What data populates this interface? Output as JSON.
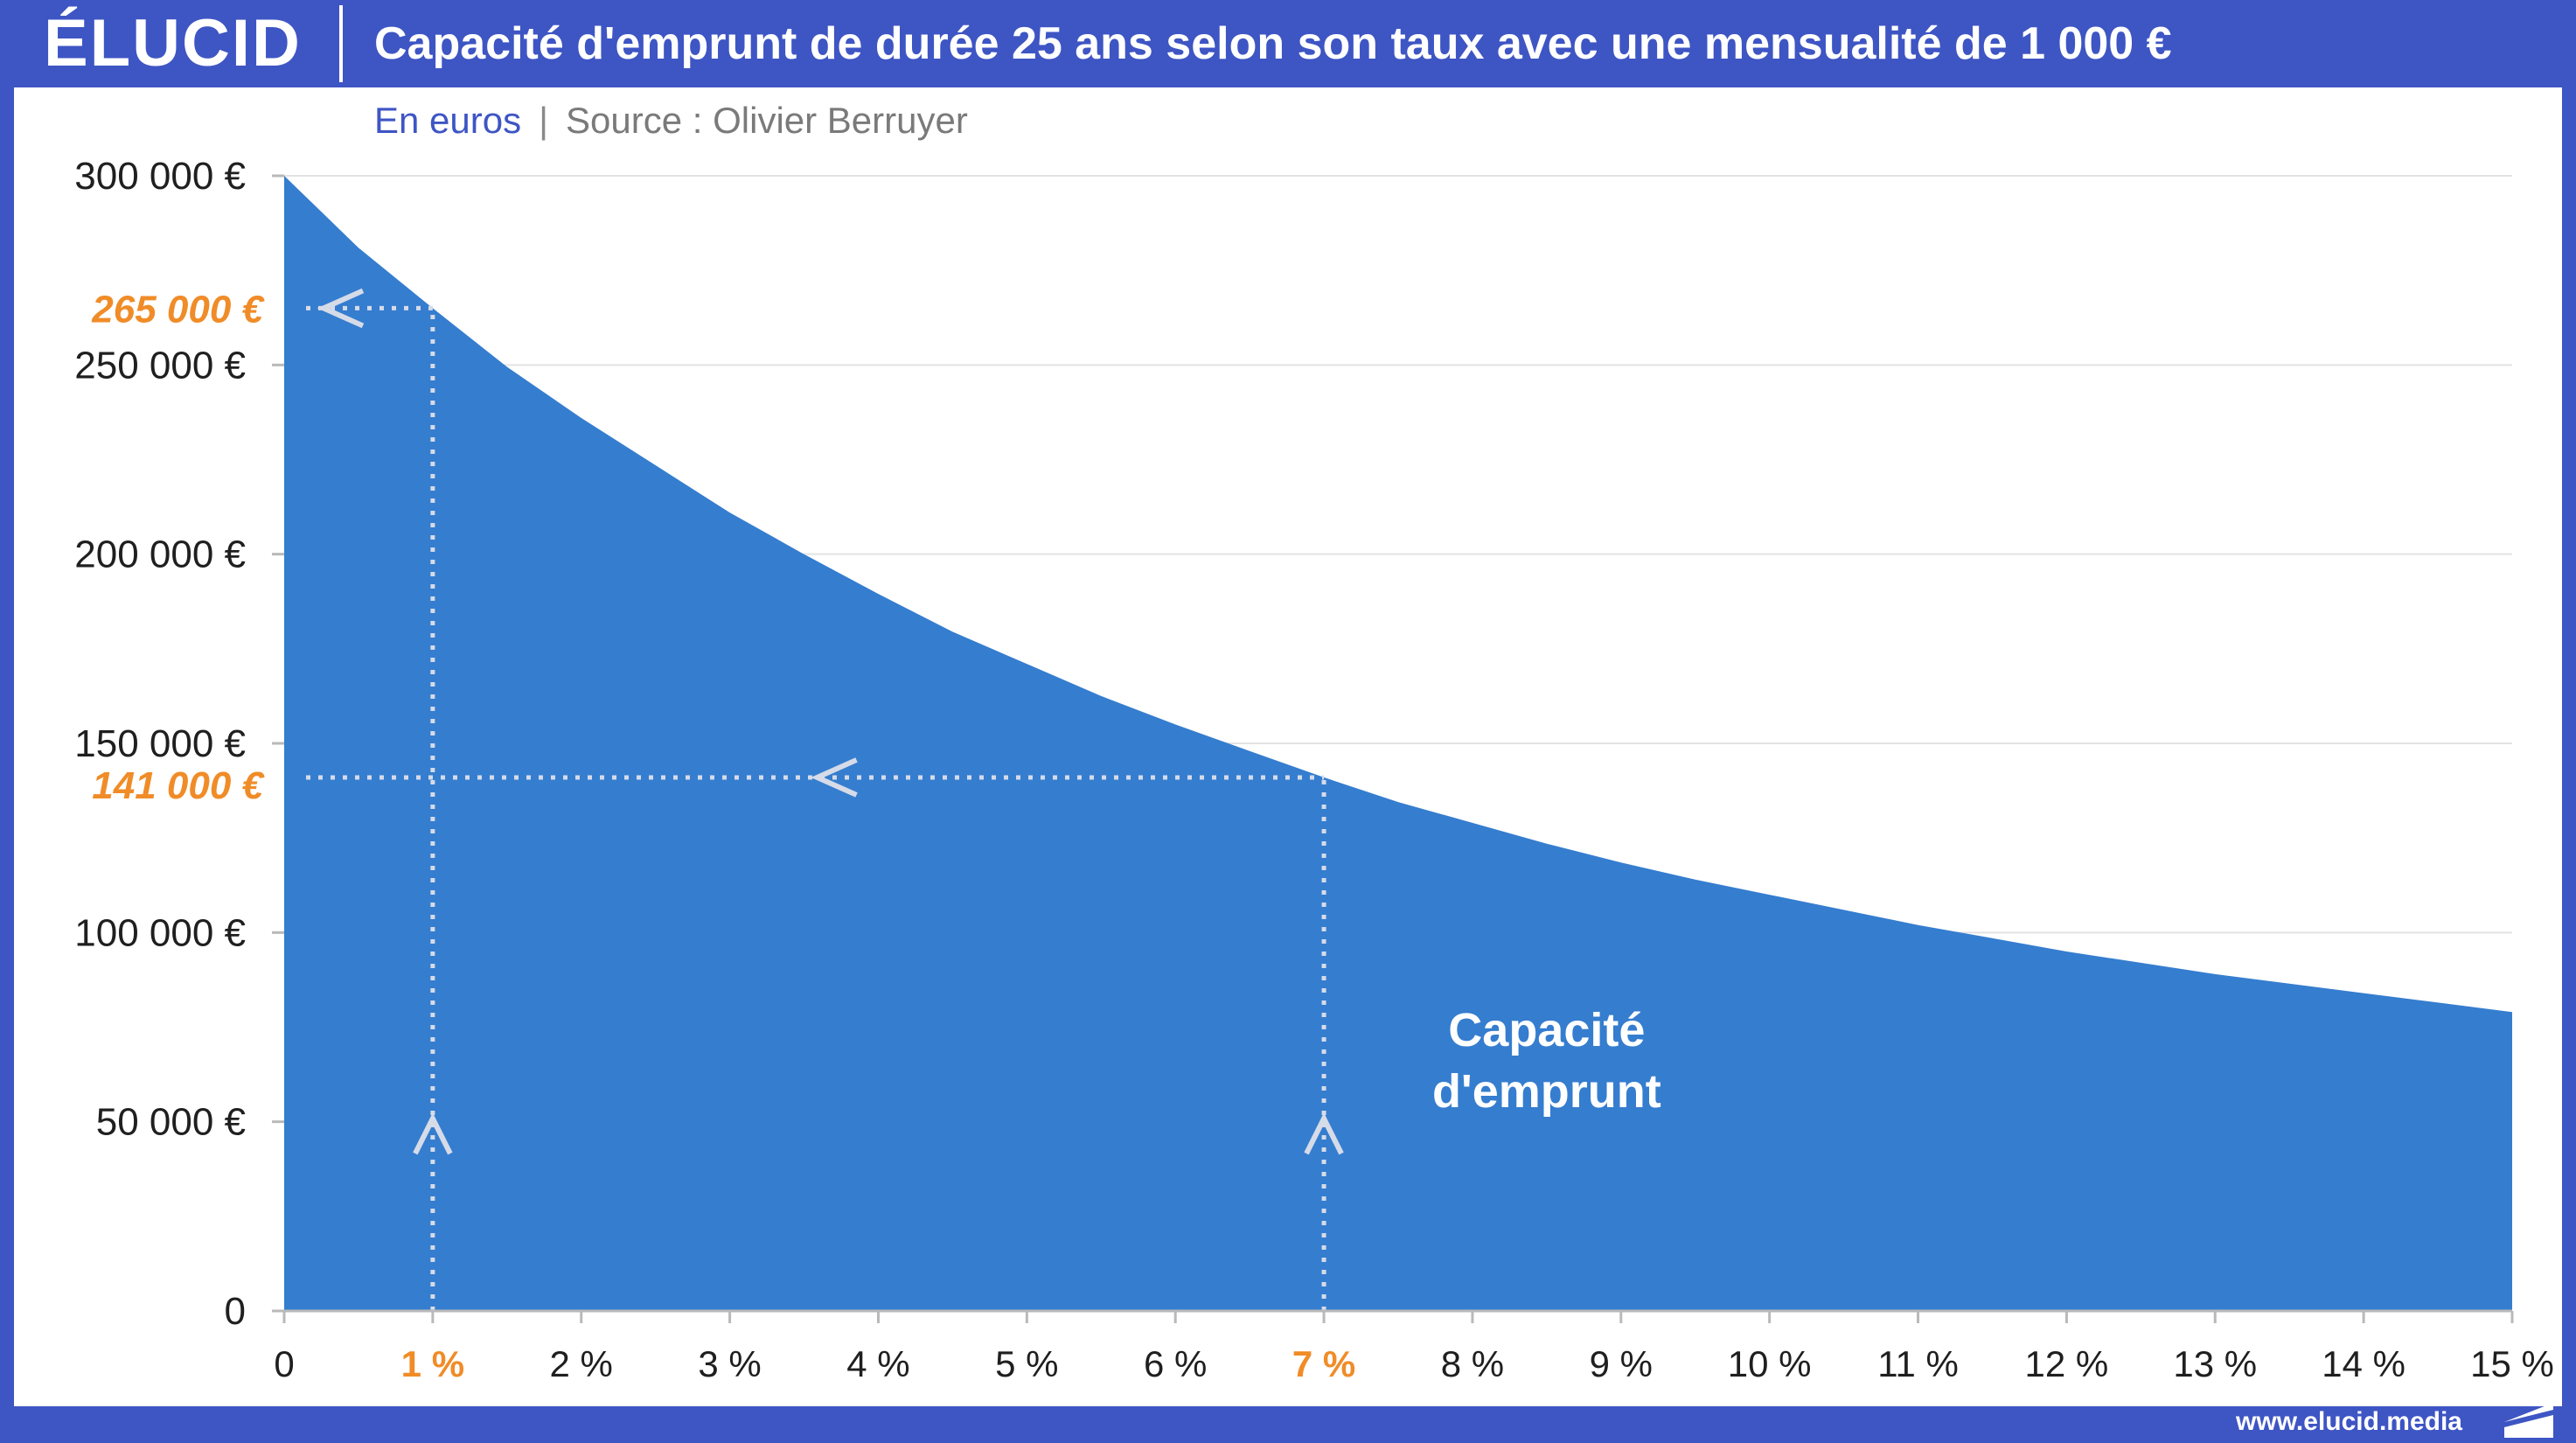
{
  "header": {
    "logo": "ÉLUCID",
    "title": "Capacité d'emprunt de durée 25 ans selon son taux avec une mensualité de 1 000 €"
  },
  "subtitle": {
    "unit": "En euros",
    "separator": "|",
    "source": "Source : Olivier Berruyer"
  },
  "footer": {
    "url": "www.elucid.media"
  },
  "colors": {
    "brand": "#3e55c4",
    "area": "#357dcf",
    "highlight": "#f08c28",
    "guide": "#d6dbe8"
  },
  "chart_data": {
    "type": "area",
    "title": "Capacité d'emprunt de durée 25 ans selon son taux avec une mensualité de 1 000 €",
    "xlabel": "",
    "ylabel": "",
    "x_unit": "%",
    "y_unit": "€",
    "xlim": [
      0,
      15
    ],
    "ylim": [
      0,
      300000
    ],
    "grid": true,
    "y_ticks": [
      {
        "value": 0,
        "label": "0"
      },
      {
        "value": 50000,
        "label": "50 000 €"
      },
      {
        "value": 100000,
        "label": "100 000 €"
      },
      {
        "value": 150000,
        "label": "150 000 €"
      },
      {
        "value": 200000,
        "label": "200 000 €"
      },
      {
        "value": 250000,
        "label": "250 000 €"
      },
      {
        "value": 300000,
        "label": "300 000 €"
      }
    ],
    "x_ticks": [
      {
        "value": 0,
        "label": "0"
      },
      {
        "value": 1,
        "label": "1 %"
      },
      {
        "value": 2,
        "label": "2 %"
      },
      {
        "value": 3,
        "label": "3 %"
      },
      {
        "value": 4,
        "label": "4 %"
      },
      {
        "value": 5,
        "label": "5 %"
      },
      {
        "value": 6,
        "label": "6 %"
      },
      {
        "value": 7,
        "label": "7 %"
      },
      {
        "value": 8,
        "label": "8 %"
      },
      {
        "value": 9,
        "label": "9 %"
      },
      {
        "value": 10,
        "label": "10 %"
      },
      {
        "value": 11,
        "label": "11 %"
      },
      {
        "value": 12,
        "label": "12 %"
      },
      {
        "value": 13,
        "label": "13 %"
      },
      {
        "value": 14,
        "label": "14 %"
      },
      {
        "value": 15,
        "label": "15 %"
      }
    ],
    "series": [
      {
        "name": "Capacité d'emprunt",
        "x": [
          0,
          0.5,
          1,
          1.5,
          2,
          2.5,
          3,
          3.5,
          4,
          4.5,
          5,
          5.5,
          6,
          6.5,
          7,
          7.5,
          8,
          8.5,
          9,
          9.5,
          10,
          10.5,
          11,
          11.5,
          12,
          12.5,
          13,
          13.5,
          14,
          14.5,
          15
        ],
        "y": [
          300000,
          281000,
          265000,
          249500,
          236000,
          223500,
          211000,
          200000,
          189500,
          179500,
          171000,
          162500,
          155000,
          148000,
          141000,
          134500,
          129000,
          123500,
          118500,
          114000,
          110000,
          106000,
          102000,
          98500,
          95000,
          92000,
          89000,
          86500,
          84000,
          81500,
          79000
        ]
      }
    ],
    "highlights": [
      {
        "x": 1,
        "x_label": "1 %",
        "y": 265000,
        "y_label": "265 000 €"
      },
      {
        "x": 7,
        "x_label": "7 %",
        "y": 141000,
        "y_label": "141 000 €"
      }
    ],
    "annotations": [
      {
        "text_lines": [
          "Capacité",
          "d'emprunt"
        ],
        "x": 8.5,
        "y": 70000
      }
    ]
  }
}
